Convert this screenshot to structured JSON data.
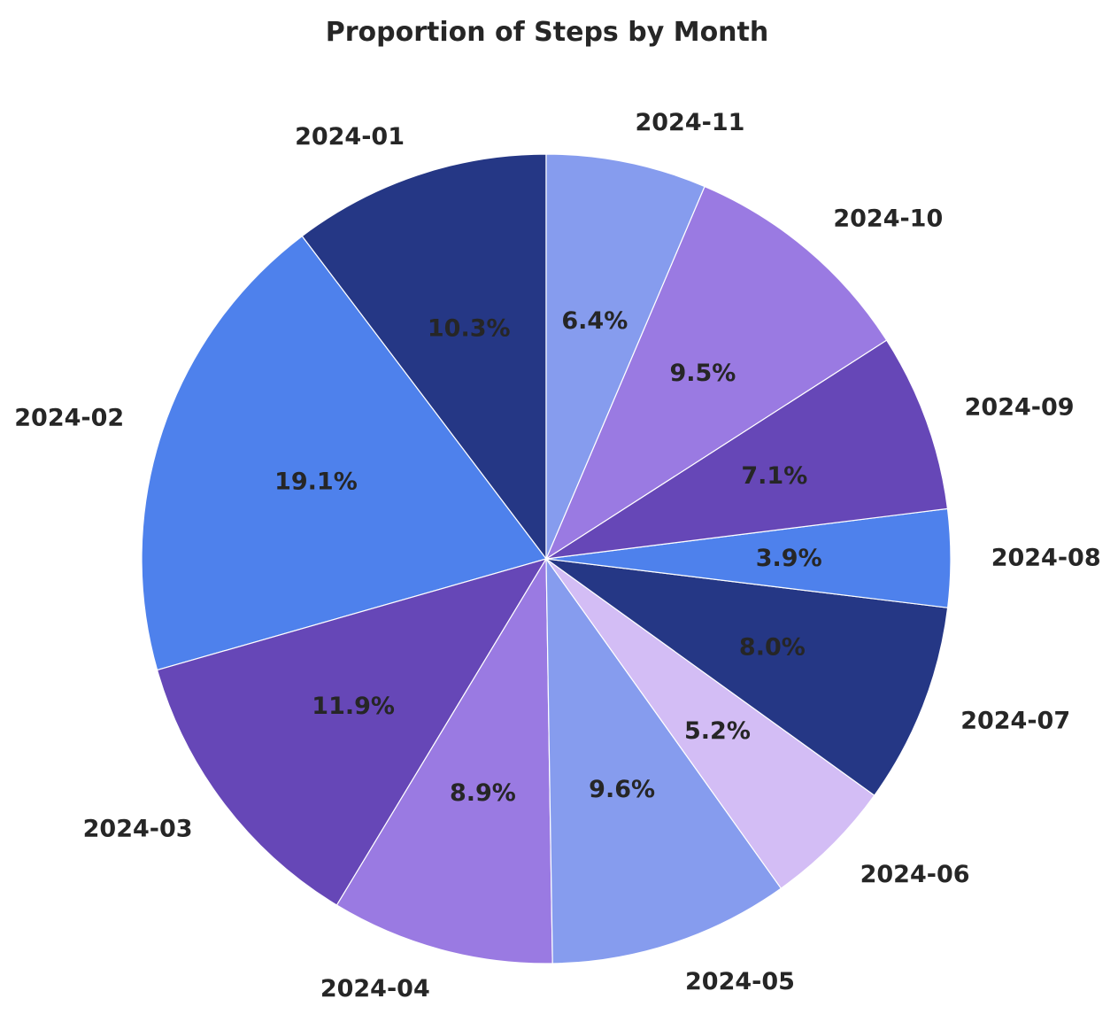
{
  "chart_data": {
    "type": "pie",
    "title": "Proportion of Steps by Month",
    "categories": [
      "2024-01",
      "2024-02",
      "2024-03",
      "2024-04",
      "2024-05",
      "2024-06",
      "2024-07",
      "2024-08",
      "2024-09",
      "2024-10",
      "2024-11"
    ],
    "values": [
      10.3,
      19.1,
      11.9,
      8.9,
      9.6,
      5.2,
      8.0,
      3.9,
      7.1,
      9.5,
      6.4
    ],
    "value_labels": [
      "10.3%",
      "19.1%",
      "11.9%",
      "8.9%",
      "9.6%",
      "5.2%",
      "8.0%",
      "3.9%",
      "7.1%",
      "9.5%",
      "6.4%"
    ],
    "unit": "%",
    "start_angle_deg": 90,
    "direction": "counterclockwise",
    "colors": [
      "#253785",
      "#4E81EC",
      "#6647B7",
      "#9A7AE2",
      "#869CEE",
      "#D3BDF5",
      "#253785",
      "#4E81EC",
      "#6647B7",
      "#9A7AE2",
      "#869CEE"
    ],
    "wedge_edge_color": "#ffffff",
    "label_color": "#262626",
    "legend": "none"
  }
}
